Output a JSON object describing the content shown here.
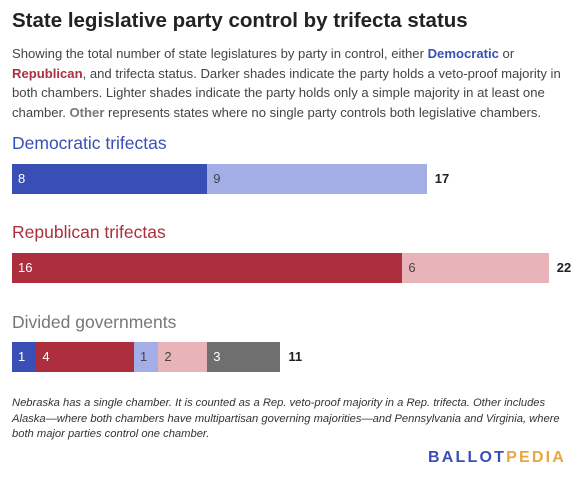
{
  "title": "State legislative party control by trifecta status",
  "description": {
    "part1": "Showing the total number of state legislatures by party in control, either ",
    "democratic": "Democratic",
    "part2": " or ",
    "republican": "Republican",
    "part3": ", and trifecta status. Darker shades indicate the party holds a veto-proof majority in both chambers. Lighter shades indicate the party holds only a simple majority in at least one chamber. ",
    "other": "Other",
    "part4": " represents states where no single party controls both legislative chambers."
  },
  "colors": {
    "dem_dark": "#3a4fb5",
    "dem_light": "#a3aee6",
    "rep_dark": "#ad2f3d",
    "rep_light": "#e8b4ba",
    "other": "#6f6f6f",
    "dem_title": "#3a4fb5",
    "rep_title": "#ad2f3d",
    "div_title": "#777777"
  },
  "chart_data": {
    "type": "bar",
    "orientation": "horizontal",
    "stacked": true,
    "groups": [
      {
        "title": "Democratic trifectas",
        "total": 17,
        "segments": [
          {
            "label": "8",
            "value": 8,
            "color": "#3a4fb5",
            "text": "dark"
          },
          {
            "label": "9",
            "value": 9,
            "color": "#a3aee6",
            "text": "light"
          }
        ]
      },
      {
        "title": "Republican trifectas",
        "total": 22,
        "segments": [
          {
            "label": "16",
            "value": 16,
            "color": "#ad2f3d",
            "text": "dark"
          },
          {
            "label": "6",
            "value": 6,
            "color": "#e8b4ba",
            "text": "light"
          }
        ]
      },
      {
        "title": "Divided governments",
        "total": 11,
        "segments": [
          {
            "label": "1",
            "value": 1,
            "color": "#3a4fb5",
            "text": "dark"
          },
          {
            "label": "4",
            "value": 4,
            "color": "#ad2f3d",
            "text": "dark"
          },
          {
            "label": "1",
            "value": 1,
            "color": "#a3aee6",
            "text": "light"
          },
          {
            "label": "2",
            "value": 2,
            "color": "#e8b4ba",
            "text": "light"
          },
          {
            "label": "3",
            "value": 3,
            "color": "#6f6f6f",
            "text": "dark"
          }
        ]
      }
    ]
  },
  "footnote": "Nebraska has a single chamber. It is counted as a Rep. veto-proof majority in a Rep. trifecta. Other includes Alaska—where both chambers have multipartisan governing majorities—and Pennsylvania and Virginia, where both major parties control one chamber.",
  "logo": {
    "part1": "BALLOT",
    "part2": "PEDIA"
  }
}
